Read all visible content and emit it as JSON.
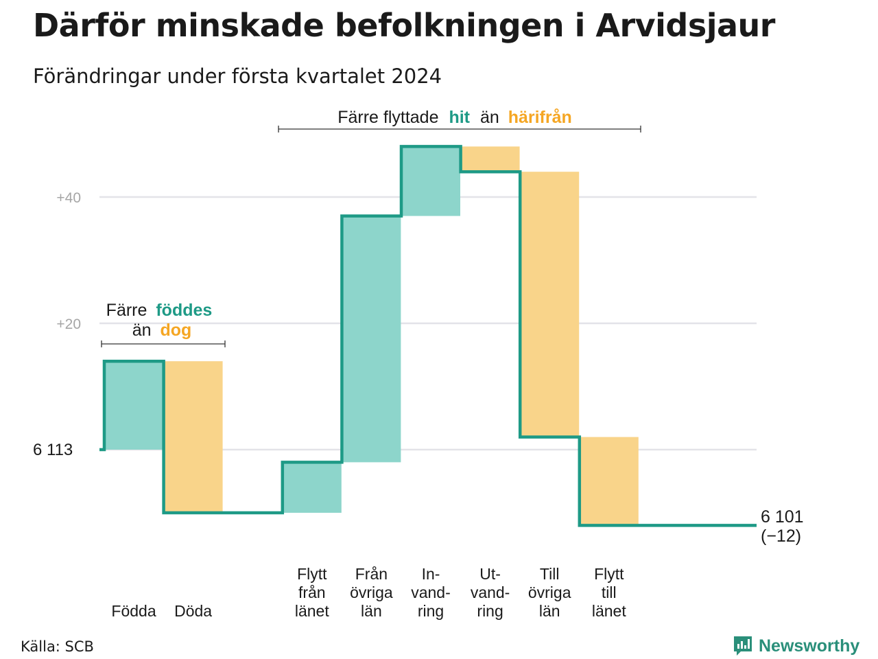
{
  "title": "Därför minskade befolkningen i Arvidsjaur",
  "subtitle": "Förändringar under första kvartalet 2024",
  "source": "Källa: SCB",
  "brand": "Newsworthy",
  "colors": {
    "positive_fill": "#8dd5cb",
    "negative_fill": "#f9d48a",
    "line": "#1e9a86",
    "hit_text": "#1e9a86",
    "harifran_text": "#f5a623",
    "grid": "#e3e3e8"
  },
  "annotations": {
    "births": {
      "line1": "Färre",
      "line1_em": "föddes",
      "line2": "än",
      "line2_em": "dog"
    },
    "moves": {
      "a": "Färre flyttade",
      "b": "hit",
      "c": "än",
      "d": "härifrån"
    }
  },
  "start_label": "6  113",
  "end_label": {
    "line1": "6 101",
    "line2": "(−12)"
  },
  "chart_data": {
    "type": "waterfall",
    "title": "Därför minskade befolkningen i Arvidsjaur",
    "subtitle": "Förändringar under första kvartalet 2024",
    "start": 6113,
    "end": 6101,
    "net_change": -12,
    "y_ticks": [
      {
        "value": 0,
        "label": "6  113"
      },
      {
        "value": 20,
        "label": "+20"
      },
      {
        "value": 40,
        "label": "+40"
      }
    ],
    "ylim": [
      -12,
      48
    ],
    "grid": true,
    "categories": [
      {
        "label": [
          "Födda"
        ],
        "value": 14
      },
      {
        "label": [
          "Döda"
        ],
        "value": -24
      },
      {
        "label": [
          "Flytt",
          "från",
          "länet"
        ],
        "value": 8
      },
      {
        "label": [
          "Från",
          "övriga",
          "län"
        ],
        "value": 39
      },
      {
        "label": [
          "In-",
          "vand-",
          "ring"
        ],
        "value": 11
      },
      {
        "label": [
          "Ut-",
          "vand-",
          "ring"
        ],
        "value": -4
      },
      {
        "label": [
          "Till",
          "övriga",
          "län"
        ],
        "value": -42
      },
      {
        "label": [
          "Flytt",
          "till",
          "länet"
        ],
        "value": -14
      }
    ]
  }
}
